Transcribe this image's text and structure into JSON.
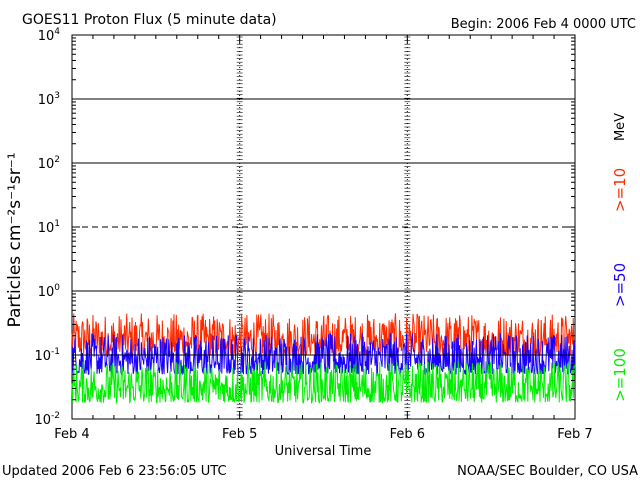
{
  "header": {
    "title": "GOES11 Proton Flux (5 minute data)",
    "begin": "Begin: 2006 Feb 4 0000 UTC"
  },
  "footer": {
    "updated": "Updated 2006 Feb  6 23:56:05 UTC",
    "credit": "NOAA/SEC Boulder, CO USA"
  },
  "chart_data": {
    "type": "line",
    "title": "GOES11 Proton Flux (5 minute data)",
    "xlabel": "Universal Time",
    "ylabel": "Particles cm⁻²s⁻¹sr⁻¹",
    "y_unit": "MeV",
    "y_scale": "log",
    "ylim": [
      0.01,
      10000
    ],
    "y_ticks": [
      {
        "base": "10",
        "exp": "-2"
      },
      {
        "base": "10",
        "exp": "-1"
      },
      {
        "base": "10",
        "exp": "0"
      },
      {
        "base": "10",
        "exp": "1"
      },
      {
        "base": "10",
        "exp": "2"
      },
      {
        "base": "10",
        "exp": "3"
      },
      {
        "base": "10",
        "exp": "4"
      }
    ],
    "x_ticks": [
      "Feb 4",
      "Feb 5",
      "Feb 6",
      "Feb 7"
    ],
    "xlim": [
      "2006-02-04",
      "2006-02-07"
    ],
    "grid": true,
    "threshold_lines": [
      1,
      10,
      100,
      1000
    ],
    "series": [
      {
        "name": ">=10",
        "color": "#ff2a00",
        "typical_range": [
          0.1,
          0.45
        ]
      },
      {
        "name": ">=50",
        "color": "#1a00ff",
        "typical_range": [
          0.05,
          0.22
        ]
      },
      {
        "name": ">=100",
        "color": "#00ee00",
        "typical_range": [
          0.018,
          0.08
        ]
      }
    ]
  }
}
